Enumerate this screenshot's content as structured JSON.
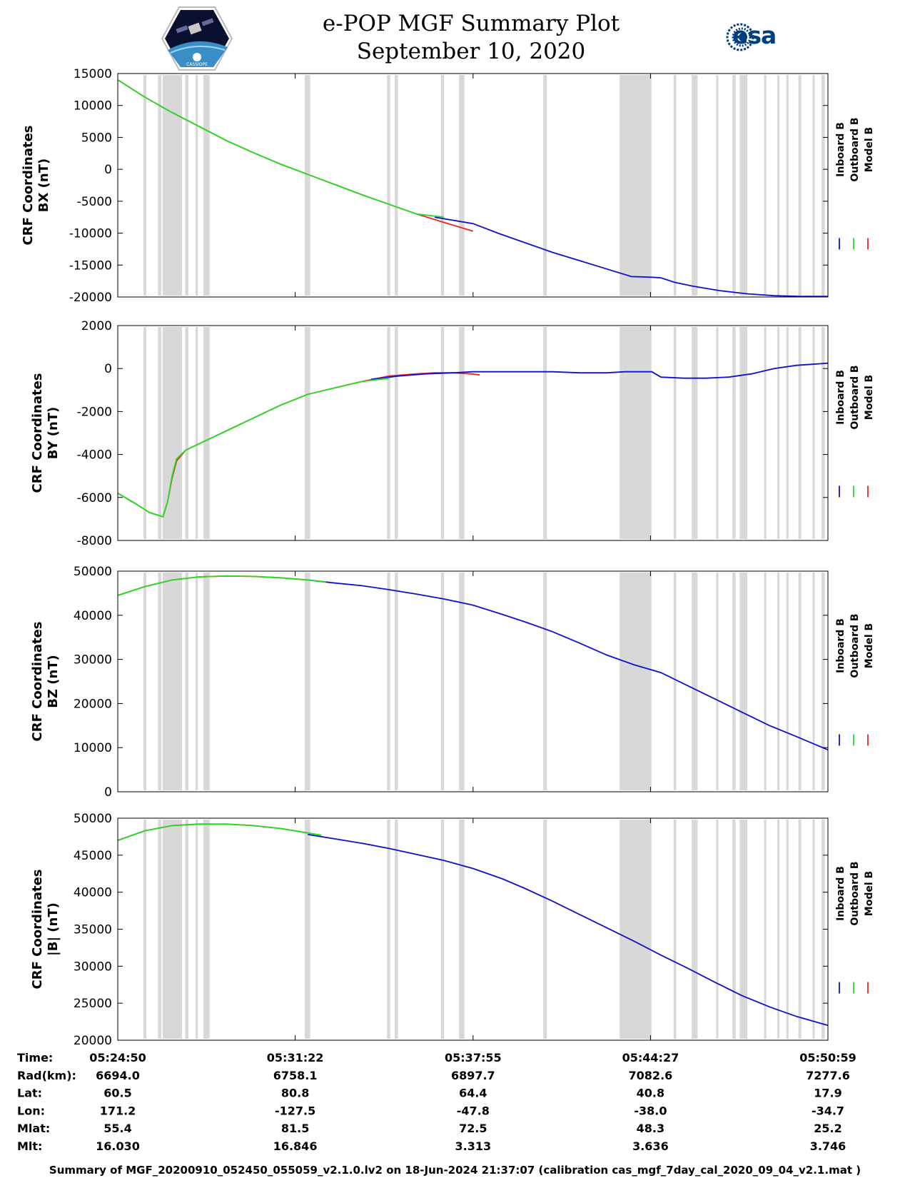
{
  "header": {
    "title": "e-POP MGF Summary Plot",
    "date": "September 10, 2020",
    "logo_left": "cassiope-logo",
    "logo_left_text": "CASSIOPE",
    "logo_right_text": "esa"
  },
  "colors": {
    "inboard": "#1010cc",
    "outboard": "#22dd22",
    "model": "#ee2222",
    "shade": "#d8d8d8"
  },
  "legend": {
    "inboard": "Inboard B",
    "outboard": "Outboard B",
    "model": "Model B"
  },
  "chart_data": {
    "type": "line",
    "x_domain": [
      "05:24:50",
      "05:50:59"
    ],
    "x_range_seconds": [
      0,
      1569
    ],
    "x_ticks": [
      {
        "time": "05:24:50",
        "seconds": 0
      },
      {
        "time": "05:31:22",
        "seconds": 392
      },
      {
        "time": "05:37:55",
        "seconds": 785
      },
      {
        "time": "05:44:27",
        "seconds": 1177
      },
      {
        "time": "05:50:59",
        "seconds": 1569
      }
    ],
    "shaded_intervals_seconds": [
      [
        57,
        63
      ],
      [
        89,
        96
      ],
      [
        99,
        142
      ],
      [
        149,
        156
      ],
      [
        172,
        177
      ],
      [
        189,
        203
      ],
      [
        413,
        425
      ],
      [
        595,
        602
      ],
      [
        612,
        619
      ],
      [
        714,
        721
      ],
      [
        754,
        766
      ],
      [
        940,
        948
      ],
      [
        1109,
        1179
      ],
      [
        1228,
        1234
      ],
      [
        1268,
        1281
      ],
      [
        1322,
        1327
      ],
      [
        1358,
        1365
      ],
      [
        1374,
        1391
      ],
      [
        1428,
        1433
      ],
      [
        1457,
        1462
      ],
      [
        1477,
        1482
      ],
      [
        1504,
        1510
      ],
      [
        1535,
        1540
      ],
      [
        1555,
        1562
      ]
    ],
    "panels": [
      {
        "id": "bx",
        "ylabel_line1": "CRF Coordinates",
        "ylabel_line2": "BX (nT)",
        "ylim": [
          -20000,
          15000
        ],
        "yticks": [
          15000,
          10000,
          5000,
          0,
          -5000,
          -10000,
          -15000,
          -20000
        ],
        "series": [
          {
            "name": "Model B",
            "x": [
              0,
              60,
              120,
              180,
              240,
              300,
              360,
              420,
              480,
              540,
              600,
              660,
              720,
              785
            ],
            "y": [
              14000,
              11300,
              8900,
              6700,
              4500,
              2600,
              800,
              -800,
              -2400,
              -4000,
              -5500,
              -7000,
              -8300,
              -9700
            ]
          },
          {
            "name": "Inboard B",
            "x": [
              700,
              785,
              840,
              900,
              960,
              1020,
              1080,
              1135,
              1180,
              1200,
              1230,
              1270,
              1330,
              1390,
              1450,
              1510,
              1569
            ],
            "y": [
              -7500,
              -8500,
              -10000,
              -11500,
              -13000,
              -14300,
              -15600,
              -16800,
              -16900,
              -17000,
              -17700,
              -18300,
              -19000,
              -19500,
              -19800,
              -19900,
              -19900
            ]
          },
          {
            "name": "Outboard B",
            "x": [
              0,
              60,
              120,
              180,
              240,
              300,
              360,
              420,
              480,
              540,
              600,
              660,
              720
            ],
            "y": [
              14000,
              11300,
              8900,
              6700,
              4500,
              2600,
              800,
              -800,
              -2400,
              -4000,
              -5500,
              -7000,
              -7500
            ]
          }
        ]
      },
      {
        "id": "by",
        "ylabel_line1": "CRF Coordinates",
        "ylabel_line2": "BY (nT)",
        "ylim": [
          -8000,
          2000
        ],
        "yticks": [
          2000,
          0,
          -2000,
          -4000,
          -6000,
          -8000
        ],
        "series": [
          {
            "name": "Model B",
            "x": [
              0,
              40,
              70,
              100,
              110,
              120,
              130,
              150,
              180,
              240,
              300,
              360,
              420,
              480,
              540,
              600,
              660,
              700,
              740,
              780,
              800
            ],
            "y": [
              -5800,
              -6300,
              -6700,
              -6900,
              -6200,
              -5100,
              -4300,
              -3800,
              -3500,
              -2900,
              -2300,
              -1700,
              -1200,
              -900,
              -600,
              -350,
              -250,
              -200,
              -200,
              -250,
              -300
            ]
          },
          {
            "name": "Inboard B",
            "x": [
              560,
              620,
              680,
              740,
              785,
              850,
              900,
              960,
              1020,
              1080,
              1120,
              1180,
              1200,
              1250,
              1300,
              1350,
              1400,
              1450,
              1500,
              1569
            ],
            "y": [
              -500,
              -350,
              -250,
              -200,
              -150,
              -150,
              -150,
              -150,
              -200,
              -200,
              -150,
              -150,
              -400,
              -450,
              -450,
              -400,
              -250,
              0,
              150,
              250
            ]
          },
          {
            "name": "Outboard B",
            "x": [
              0,
              40,
              70,
              100,
              110,
              120,
              130,
              150,
              180,
              240,
              300,
              360,
              420,
              480,
              540,
              600
            ],
            "y": [
              -5800,
              -6300,
              -6700,
              -6900,
              -6200,
              -5000,
              -4200,
              -3800,
              -3500,
              -2900,
              -2300,
              -1700,
              -1200,
              -900,
              -600,
              -450
            ]
          }
        ]
      },
      {
        "id": "bz",
        "ylabel_line1": "CRF Coordinates",
        "ylabel_line2": "BZ (nT)",
        "ylim": [
          0,
          50000
        ],
        "yticks": [
          50000,
          40000,
          30000,
          20000,
          10000,
          0
        ],
        "series": [
          {
            "name": "Model B",
            "x": [
              0,
              60,
              120,
              180,
              240,
              300,
              360,
              420
            ],
            "y": [
              44500,
              46500,
              48000,
              48700,
              48900,
              48800,
              48500,
              48000
            ]
          },
          {
            "name": "Inboard B",
            "x": [
              420,
              480,
              540,
              600,
              660,
              720,
              785,
              850,
              900,
              960,
              1020,
              1080,
              1140,
              1200,
              1260,
              1320,
              1380,
              1440,
              1500,
              1569
            ],
            "y": [
              48000,
              47300,
              46700,
              45800,
              44800,
              43700,
              42300,
              40200,
              38500,
              36300,
              33700,
              31000,
              28800,
              27000,
              24000,
              21000,
              18000,
              15000,
              12500,
              9500
            ]
          },
          {
            "name": "Outboard B",
            "x": [
              0,
              60,
              120,
              180,
              240,
              300,
              360,
              420,
              460
            ],
            "y": [
              44500,
              46500,
              48000,
              48700,
              48900,
              48800,
              48500,
              48000,
              47500
            ]
          }
        ]
      },
      {
        "id": "bmag",
        "ylabel_line1": "CRF Coordinates",
        "ylabel_line2": "|B| (nT)",
        "ylim": [
          20000,
          50000
        ],
        "yticks": [
          50000,
          45000,
          40000,
          35000,
          30000,
          25000,
          20000
        ],
        "series": [
          {
            "name": "Model B",
            "x": [
              0,
              60,
              120,
              180,
              240,
              300,
              360,
              420
            ],
            "y": [
              47000,
              48300,
              49000,
              49200,
              49200,
              49000,
              48600,
              48000
            ]
          },
          {
            "name": "Inboard B",
            "x": [
              420,
              480,
              540,
              600,
              660,
              720,
              785,
              850,
              900,
              960,
              1020,
              1080,
              1140,
              1200,
              1260,
              1320,
              1380,
              1440,
              1500,
              1569
            ],
            "y": [
              47800,
              47200,
              46600,
              45900,
              45100,
              44300,
              43200,
              41800,
              40500,
              38800,
              37000,
              35200,
              33400,
              31500,
              29700,
              27800,
              26000,
              24500,
              23200,
              22000
            ]
          },
          {
            "name": "Outboard B",
            "x": [
              0,
              60,
              120,
              180,
              240,
              300,
              360,
              420,
              450
            ],
            "y": [
              47000,
              48300,
              49000,
              49200,
              49200,
              49000,
              48600,
              48000,
              47700
            ]
          }
        ]
      }
    ]
  },
  "ephemeris": {
    "labels": [
      "Time:",
      "Rad(km):",
      "Lat:",
      "Lon:",
      "Mlat:",
      "Mlt:"
    ],
    "columns": [
      [
        "05:24:50",
        "6694.0",
        "60.5",
        "171.2",
        "55.4",
        "16.030"
      ],
      [
        "05:31:22",
        "6758.1",
        "80.8",
        "-127.5",
        "81.5",
        "16.846"
      ],
      [
        "05:37:55",
        "6897.7",
        "64.4",
        "-47.8",
        "72.5",
        "3.313"
      ],
      [
        "05:44:27",
        "7082.6",
        "40.8",
        "-38.0",
        "48.3",
        "3.636"
      ],
      [
        "05:50:59",
        "7277.6",
        "17.9",
        "-34.7",
        "25.2",
        "3.746"
      ]
    ]
  },
  "footer": {
    "text": "Summary of MGF_20200910_052450_055059_v2.1.0.lv2 on 18-Jun-2024 21:37:07 (calibration cas_mgf_7day_cal_2020_09_04_v2.1.mat )"
  }
}
